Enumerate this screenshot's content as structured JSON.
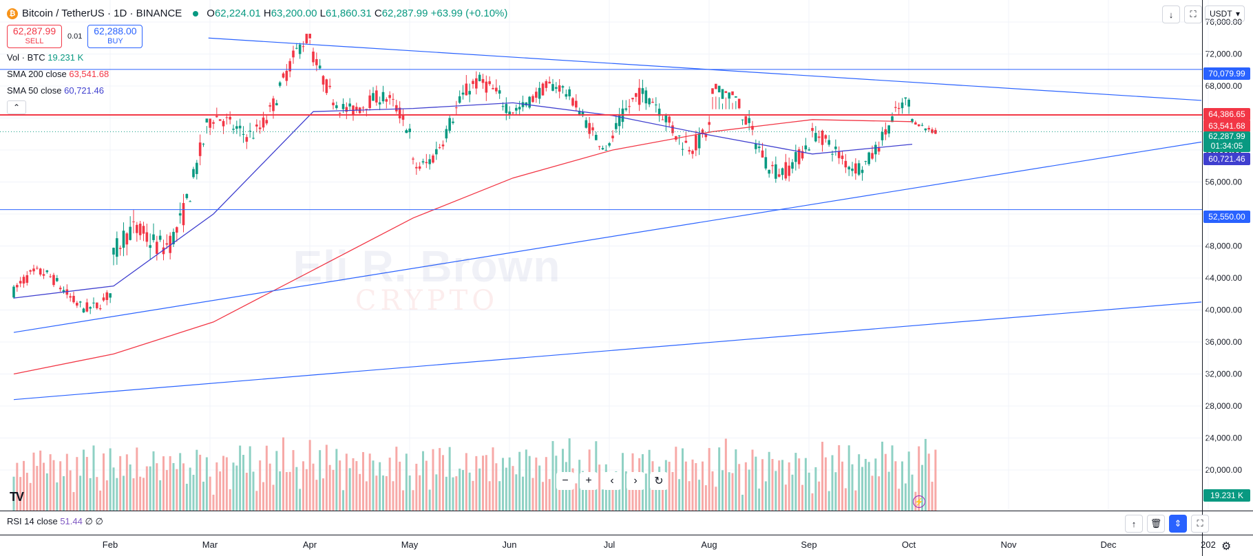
{
  "header": {
    "symbol": "Bitcoin / TetherUS · 1D · BINANCE",
    "open_label": "O",
    "open": "62,224.01",
    "high_label": "H",
    "high": "63,200.00",
    "low_label": "L",
    "low": "61,860.31",
    "close_label": "C",
    "close": "62,287.99",
    "change": "+63.99 (+0.10%)"
  },
  "trade": {
    "sell_price": "62,287.99",
    "sell_label": "SELL",
    "spread": "0.01",
    "buy_price": "62,288.00",
    "buy_label": "BUY"
  },
  "indicators": [
    {
      "label": "Vol · BTC",
      "value": "19.231 K",
      "color": "#089981"
    },
    {
      "label": "SMA 200 close",
      "value": "63,541.68",
      "color": "#f23645"
    },
    {
      "label": "SMA 50 close",
      "value": "60,721.46",
      "color": "#3f3fcf"
    }
  ],
  "collapse_icon": "chevron-up-icon",
  "currency": "USDT",
  "watermark": {
    "main": "Eli R. Brown",
    "sub": "CRYPTO"
  },
  "rsi": {
    "label": "RSI 14 close",
    "value": "51.44",
    "extra1": "∅",
    "extra2": "∅"
  },
  "price_labels": {
    "resistance_top": "70,079.99",
    "resistance_mid": "64,386.65",
    "sma200": "63,541.68",
    "last_price": "62,287.99",
    "countdown": "01:34:05",
    "sma50": "60,721.46",
    "support": "52,550.00",
    "volume": "19.231 K"
  },
  "colors": {
    "up": "#089981",
    "down": "#f23645",
    "sma200": "#f23645",
    "sma50": "#3f3fcf",
    "trendline": "#2962ff",
    "volume_up": "#8fd1c4",
    "volume_down": "#f7a9a7"
  },
  "chart_data": {
    "type": "candlestick",
    "title": "Bitcoin / TetherUS · 1D · BINANCE",
    "y_ticks": [
      20000,
      24000,
      28000,
      32000,
      36000,
      40000,
      44000,
      48000,
      52000,
      56000,
      60000,
      64000,
      68000,
      72000,
      76000
    ],
    "y_tick_labels": [
      "20,000.00",
      "24,000.00",
      "28,000.00",
      "32,000.00",
      "36,000.00",
      "40,000.00",
      "44,000.00",
      "48,000.00",
      "52,000.00",
      "56,000.00",
      "60,000.00",
      "64,000.00",
      "68,000.00",
      "72,000.00",
      "76,000.00"
    ],
    "x_tick_labels": [
      "Feb",
      "Mar",
      "Apr",
      "May",
      "Jun",
      "Jul",
      "Aug",
      "Sep",
      "Oct",
      "Nov",
      "Dec",
      "202"
    ],
    "x_ticks_month_index": [
      1,
      2,
      3,
      4,
      5,
      6,
      7,
      8,
      9,
      10,
      11,
      12
    ],
    "monthly_ohlc": [
      {
        "month": "Jan",
        "open": 42300,
        "high": 49000,
        "low": 38500,
        "close": 42600
      },
      {
        "month": "Feb",
        "open": 42600,
        "high": 63000,
        "low": 41800,
        "close": 61200
      },
      {
        "month": "Mar",
        "open": 61200,
        "high": 73800,
        "low": 59000,
        "close": 71300
      },
      {
        "month": "Apr",
        "open": 71300,
        "high": 72800,
        "low": 59200,
        "close": 60700
      },
      {
        "month": "May",
        "open": 60700,
        "high": 71900,
        "low": 56500,
        "close": 67500
      },
      {
        "month": "Jun",
        "open": 67500,
        "high": 71900,
        "low": 60000,
        "close": 62700
      },
      {
        "month": "Jul",
        "open": 62700,
        "high": 70000,
        "low": 53500,
        "close": 64600
      },
      {
        "month": "Aug",
        "open": 64600,
        "high": 65100,
        "low": 49000,
        "close": 58900
      },
      {
        "month": "Sep",
        "open": 58900,
        "high": 66500,
        "low": 52550,
        "close": 63300
      },
      {
        "month": "Oct",
        "open": 63300,
        "high": 64400,
        "low": 59800,
        "close": 62287.99
      }
    ],
    "sma200_path": [
      [
        0,
        32000
      ],
      [
        1,
        34500
      ],
      [
        2,
        38500
      ],
      [
        3,
        45000
      ],
      [
        4,
        51500
      ],
      [
        5,
        56500
      ],
      [
        6,
        60000
      ],
      [
        7,
        62300
      ],
      [
        8,
        63800
      ],
      [
        9,
        63541.68
      ]
    ],
    "sma50_path": [
      [
        0,
        41500
      ],
      [
        1,
        43000
      ],
      [
        2,
        52000
      ],
      [
        3,
        64800
      ],
      [
        4,
        65200
      ],
      [
        5,
        65900
      ],
      [
        6,
        64300
      ],
      [
        7,
        61800
      ],
      [
        8,
        59500
      ],
      [
        9,
        60721.46
      ]
    ],
    "horizontal_lines": [
      70079.99,
      64386.65,
      52550.0
    ],
    "trendlines": [
      {
        "from": [
          1.95,
          74000
        ],
        "to": [
          13,
          66200
        ]
      },
      {
        "from": [
          0,
          37200
        ],
        "to": [
          13,
          61000
        ]
      },
      {
        "from": [
          0,
          28800
        ],
        "to": [
          13,
          41000
        ]
      }
    ]
  }
}
